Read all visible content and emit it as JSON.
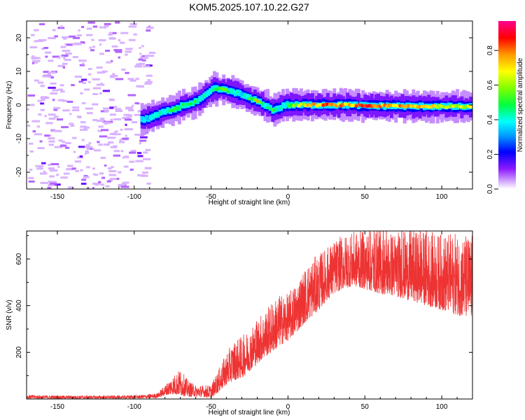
{
  "figure_title": "KOM5.2025.107.10.22.G27",
  "chart_data": [
    {
      "type": "heatmap",
      "xlabel": "Height of straight line (km)",
      "ylabel": "Frequency (Hz)",
      "xlim": [
        -170,
        120
      ],
      "ylim": [
        -25,
        25
      ],
      "xticks": [
        -150,
        -100,
        -50,
        0,
        50,
        100
      ],
      "yticks": [
        -20,
        -10,
        0,
        10,
        20
      ],
      "colorbar": {
        "label": "Normalized spectral amplitude",
        "range": [
          0,
          0.97
        ],
        "ticks": [
          0.0,
          0.2,
          0.4,
          0.6,
          0.8
        ],
        "tick_labels": [
          "0.0",
          "0.2",
          "0.4",
          "0.6",
          "0.8"
        ]
      },
      "noise_region_x": [
        -170,
        -90
      ],
      "ridge": [
        {
          "x": -95,
          "y": -4.5,
          "a": 0.35
        },
        {
          "x": -88,
          "y": -3.5,
          "a": 0.4
        },
        {
          "x": -80,
          "y": -2,
          "a": 0.45
        },
        {
          "x": -75,
          "y": -1.5,
          "a": 0.5
        },
        {
          "x": -68,
          "y": 0,
          "a": 0.5
        },
        {
          "x": -62,
          "y": 0.5,
          "a": 0.5
        },
        {
          "x": -56,
          "y": 2,
          "a": 0.45
        },
        {
          "x": -52,
          "y": 3.5,
          "a": 0.4
        },
        {
          "x": -48,
          "y": 5,
          "a": 0.45
        },
        {
          "x": -42,
          "y": 4.5,
          "a": 0.6
        },
        {
          "x": -36,
          "y": 4,
          "a": 0.45
        },
        {
          "x": -30,
          "y": 3,
          "a": 0.4
        },
        {
          "x": -25,
          "y": 2,
          "a": 0.5
        },
        {
          "x": -20,
          "y": 1.2,
          "a": 0.75
        },
        {
          "x": -15,
          "y": 0,
          "a": 0.4
        },
        {
          "x": -10,
          "y": -1.5,
          "a": 0.55
        },
        {
          "x": -6,
          "y": -1,
          "a": 0.4
        },
        {
          "x": -2,
          "y": 0,
          "a": 0.45
        },
        {
          "x": 2,
          "y": 0,
          "a": 0.55
        },
        {
          "x": 10,
          "y": 0,
          "a": 0.7
        },
        {
          "x": 20,
          "y": 0,
          "a": 0.8
        },
        {
          "x": 30,
          "y": 0,
          "a": 0.85
        },
        {
          "x": 40,
          "y": 0,
          "a": 0.75
        },
        {
          "x": 50,
          "y": -0.2,
          "a": 0.85
        },
        {
          "x": 60,
          "y": -0.3,
          "a": 0.8
        },
        {
          "x": 70,
          "y": -0.3,
          "a": 0.8
        },
        {
          "x": 80,
          "y": -0.4,
          "a": 0.75
        },
        {
          "x": 90,
          "y": -0.4,
          "a": 0.75
        },
        {
          "x": 100,
          "y": -0.4,
          "a": 0.7
        },
        {
          "x": 110,
          "y": -0.5,
          "a": 0.7
        },
        {
          "x": 120,
          "y": -0.5,
          "a": 0.7
        }
      ]
    },
    {
      "type": "line",
      "xlabel": "Height of straight line (km)",
      "ylabel": "SNR (v/v)",
      "xlim": [
        -170,
        120
      ],
      "ylim": [
        0,
        720
      ],
      "xticks": [
        -150,
        -100,
        -50,
        0,
        50,
        100
      ],
      "yticks": [
        200,
        400,
        600
      ],
      "line_color": "#ee3333",
      "series": [
        {
          "x": [
            -170,
            -150,
            -130,
            -110,
            -95,
            -85,
            -80,
            -75,
            -70,
            -65,
            -60,
            -55,
            -50,
            -45,
            -40,
            -35,
            -30,
            -25,
            -20,
            -15,
            -10,
            -5,
            0,
            5,
            10,
            15,
            20,
            25,
            30,
            35,
            40,
            45,
            50,
            55,
            60,
            70,
            80,
            90,
            100,
            110,
            120
          ],
          "y_low": [
            2,
            2,
            2,
            2,
            3,
            5,
            15,
            20,
            15,
            10,
            10,
            8,
            5,
            30,
            60,
            80,
            90,
            120,
            150,
            180,
            200,
            230,
            250,
            280,
            320,
            350,
            380,
            420,
            450,
            470,
            480,
            480,
            470,
            460,
            450,
            440,
            420,
            400,
            380,
            360,
            340
          ],
          "y_high": [
            18,
            15,
            15,
            15,
            18,
            25,
            60,
            100,
            130,
            80,
            60,
            60,
            60,
            130,
            200,
            250,
            270,
            300,
            350,
            380,
            420,
            450,
            450,
            500,
            550,
            600,
            620,
            650,
            680,
            700,
            710,
            720,
            720,
            720,
            720,
            720,
            720,
            720,
            710,
            710,
            705
          ]
        }
      ]
    }
  ]
}
